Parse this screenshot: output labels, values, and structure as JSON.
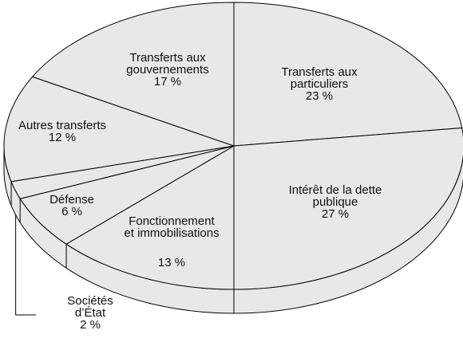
{
  "chart_data": {
    "type": "pie",
    "categories": [
      "Transferts aux\nparticuliers",
      "Intérêt de la dette\npublique",
      "Fonctionnement\net immobilisations",
      "Défense",
      "Sociétés\nd’État",
      "Autres transferts",
      "Transferts aux\ngouvernements"
    ],
    "values": [
      23,
      27,
      13,
      6,
      2,
      12,
      17
    ],
    "value_labels": [
      "23 %",
      "27 %",
      "13 %",
      "6 %",
      "2 %",
      "12 %",
      "17 %"
    ],
    "color": "#e8e8e8"
  }
}
